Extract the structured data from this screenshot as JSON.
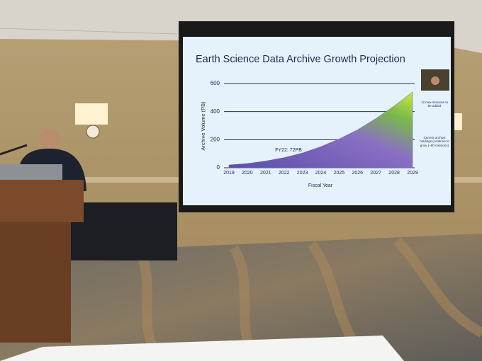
{
  "chart_data": {
    "type": "area",
    "title": "Earth Science Data Archive Growth Projection",
    "x_label": "Fiscal Year",
    "y_label": "Archive Volume (PB)",
    "categories": [
      "2019",
      "2020",
      "2021",
      "2022",
      "2023",
      "2024",
      "2025",
      "2026",
      "2027",
      "2028",
      "2029"
    ],
    "values": [
      20,
      30,
      48,
      72,
      105,
      150,
      205,
      270,
      350,
      440,
      540
    ],
    "color": "#6a5fb0",
    "ylim": [
      0,
      600
    ],
    "yticks": [
      0,
      200,
      400,
      600
    ],
    "grid": true,
    "annotations": [
      "FY22: 72PB",
      "12 new missions to be added",
      "Current archive holdings (continue to grow (~80 missions)"
    ]
  }
}
